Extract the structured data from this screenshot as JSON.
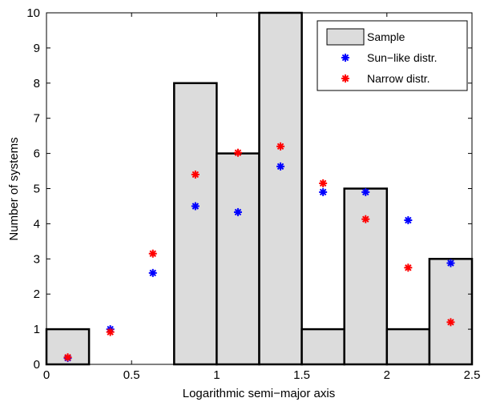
{
  "chart_data": {
    "type": "bar",
    "xlabel": "Logarithmic semi−major axis",
    "ylabel": "Number of systems",
    "xlim": [
      0,
      2.5
    ],
    "ylim": [
      0,
      10
    ],
    "x_ticks": [
      "0",
      "0.5",
      "1",
      "1.5",
      "2",
      "2.5"
    ],
    "y_ticks": [
      "0",
      "1",
      "2",
      "3",
      "4",
      "5",
      "6",
      "7",
      "8",
      "9",
      "10"
    ],
    "legend_position": "top-right",
    "bin_edges": [
      0,
      0.25,
      0.5,
      0.75,
      1.0,
      1.25,
      1.5,
      1.75,
      2.0,
      2.25,
      2.5
    ],
    "bin_centers": [
      0.125,
      0.375,
      0.625,
      0.875,
      1.125,
      1.375,
      1.625,
      1.875,
      2.125,
      2.375
    ],
    "series": [
      {
        "name": "Sample",
        "kind": "histogram",
        "color": "#dcdcdc",
        "values": [
          1,
          0,
          0,
          8,
          6,
          10,
          1,
          5,
          1,
          3
        ]
      },
      {
        "name": "Sun−like distr.",
        "kind": "marker",
        "color": "#0000ff",
        "values": [
          0.18,
          1.0,
          2.6,
          4.5,
          4.33,
          5.63,
          4.9,
          4.9,
          4.1,
          2.88
        ]
      },
      {
        "name": "Narrow distr.",
        "kind": "marker",
        "color": "#ff0000",
        "values": [
          0.2,
          0.92,
          3.15,
          5.4,
          6.02,
          6.2,
          5.15,
          4.13,
          2.75,
          1.2
        ]
      }
    ]
  }
}
